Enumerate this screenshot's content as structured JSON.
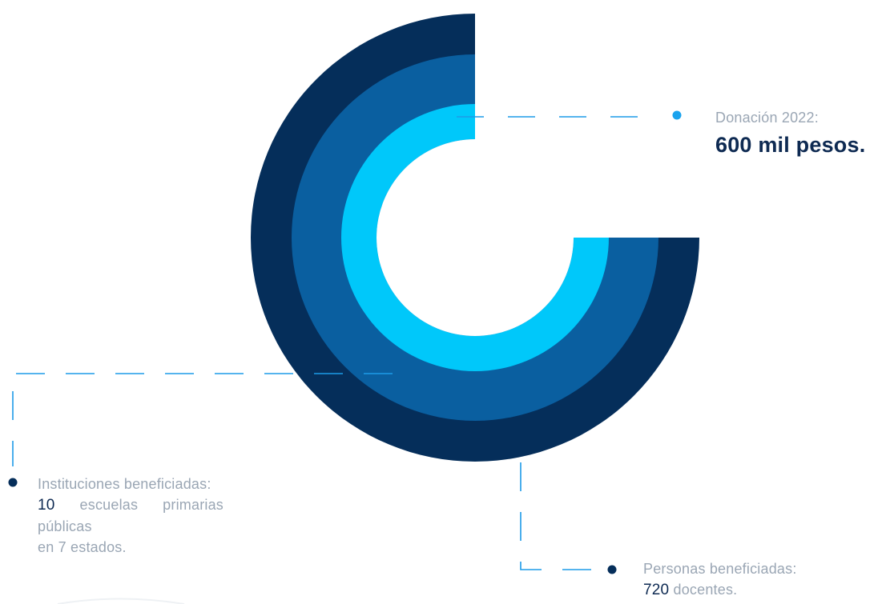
{
  "chart_data": {
    "type": "donut",
    "title": "",
    "rings": [
      {
        "ring": "outer",
        "color": "#052e5a",
        "sweep_degrees": 270
      },
      {
        "ring": "middle",
        "color": "#0a5fa0",
        "sweep_degrees": 270
      },
      {
        "ring": "inner",
        "color": "#00c8fa",
        "sweep_degrees": 270
      }
    ],
    "open_quadrant": "top-right"
  },
  "colors": {
    "navy": "#052e5a",
    "blue": "#0a5fa0",
    "cyan": "#00c8fa",
    "text_gray": "#9aa6b4",
    "text_dark": "#0e2a52",
    "leader_line": "#1d9be8"
  },
  "callouts": {
    "donation": {
      "label": "Donación 2022:",
      "value": "600 mil pesos."
    },
    "institutions": {
      "label": "Instituciones beneficiadas:",
      "count": "10",
      "line2_rest": "escuelas primarias públicas",
      "line3": "en 7 estados."
    },
    "people": {
      "label": "Personas beneficiadas:",
      "count": "720",
      "rest": "docentes."
    }
  },
  "icons": {
    "donation_marker": "bullet-dot-icon",
    "institutions_marker": "bullet-dot-icon",
    "people_marker": "bullet-dot-icon"
  }
}
